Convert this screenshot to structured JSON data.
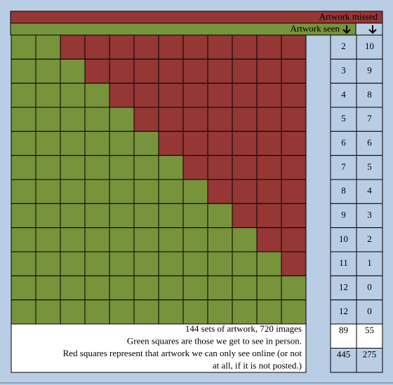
{
  "header": {
    "missed_label": "Artwork missed",
    "seen_label": "Artwork seen"
  },
  "rows": [
    {
      "seen": 2,
      "missed": 10
    },
    {
      "seen": 3,
      "missed": 9
    },
    {
      "seen": 4,
      "missed": 8
    },
    {
      "seen": 5,
      "missed": 7
    },
    {
      "seen": 6,
      "missed": 6
    },
    {
      "seen": 7,
      "missed": 5
    },
    {
      "seen": 8,
      "missed": 4
    },
    {
      "seen": 9,
      "missed": 3
    },
    {
      "seen": 10,
      "missed": 2
    },
    {
      "seen": 11,
      "missed": 1
    },
    {
      "seen": 12,
      "missed": 0
    },
    {
      "seen": 12,
      "missed": 0
    }
  ],
  "totals": [
    {
      "seen": 89,
      "missed": 55
    },
    {
      "seen": 445,
      "missed": 275
    }
  ],
  "notes": [
    "144 sets of artwork, 720 images",
    "Green squares are those we get to see in person.",
    "Red squares represent that artwork we can only see online (or not",
    "at all, if it is not posted.)"
  ]
}
